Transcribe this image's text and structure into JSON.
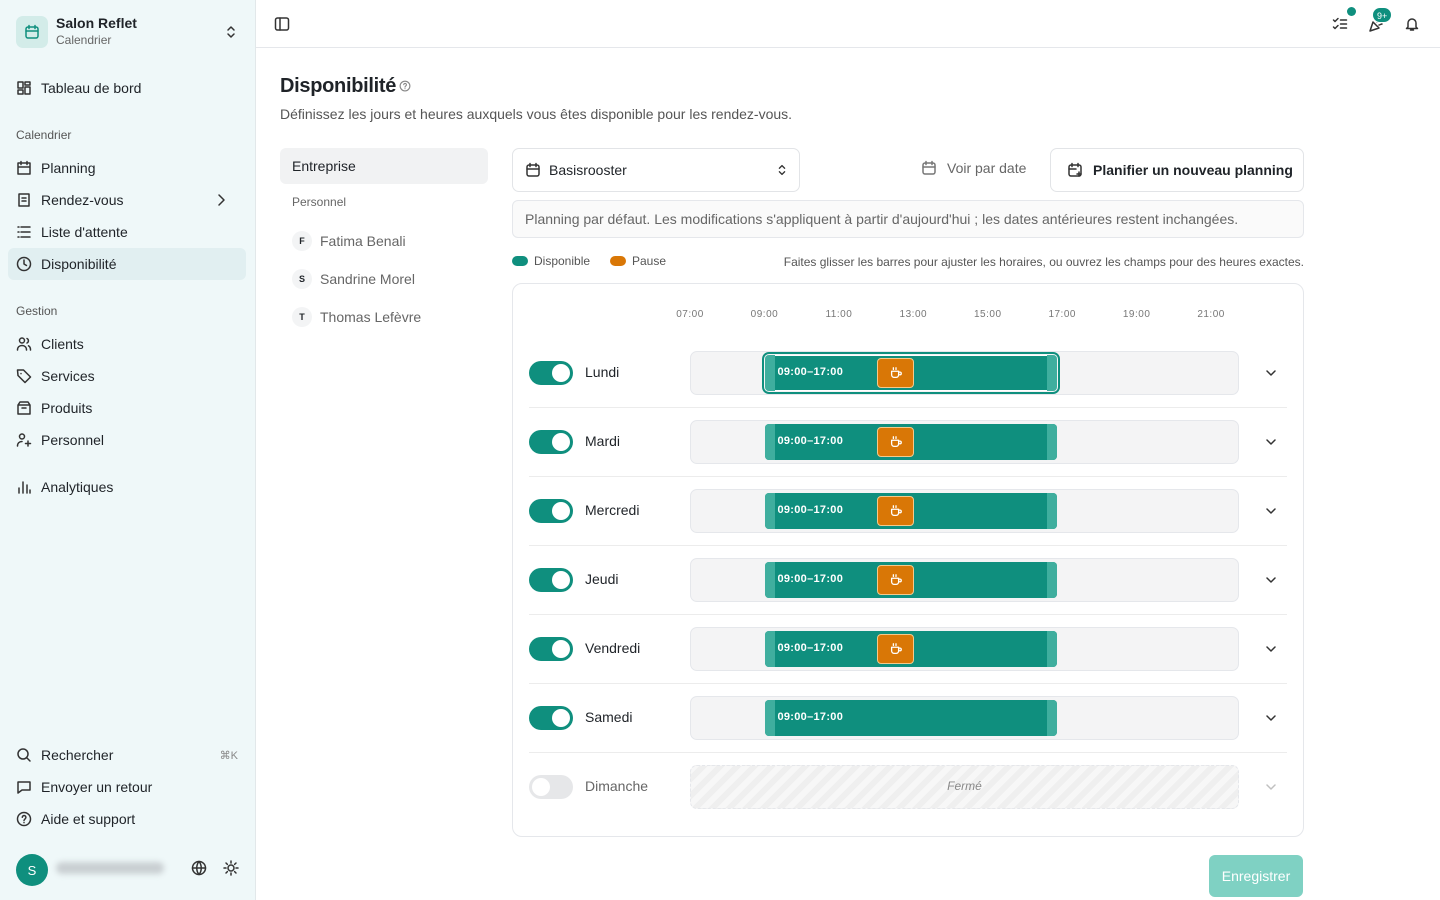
{
  "sidebar": {
    "org": {
      "name": "Salon Reflet",
      "subtitle": "Calendrier"
    },
    "top_item": "Tableau de bord",
    "sections": [
      {
        "title": "Calendrier",
        "items": [
          {
            "label": "Planning"
          },
          {
            "label": "Rendez-vous",
            "expandable": true
          },
          {
            "label": "Liste d'attente"
          },
          {
            "label": "Disponibilité",
            "active": true
          }
        ]
      },
      {
        "title": "Gestion",
        "items": [
          {
            "label": "Clients"
          },
          {
            "label": "Services"
          },
          {
            "label": "Produits"
          },
          {
            "label": "Personnel"
          }
        ]
      }
    ],
    "extra_item": "Analytiques",
    "footer": [
      {
        "label": "Rechercher",
        "shortcut": "⌘K"
      },
      {
        "label": "Envoyer un retour"
      },
      {
        "label": "Aide et support"
      }
    ],
    "user": {
      "initial": "S"
    }
  },
  "topbar": {
    "badge": "9+"
  },
  "page": {
    "title": "Disponibilité",
    "description": "Définissez les jours et heures auxquels vous êtes disponible pour les rendez-vous.",
    "scope": {
      "company": "Entreprise",
      "staff_heading": "Personnel",
      "staff": [
        {
          "initial": "F",
          "name": "Fatima Benali"
        },
        {
          "initial": "S",
          "name": "Sandrine Morel"
        },
        {
          "initial": "T",
          "name": "Thomas Lefèvre"
        }
      ]
    },
    "schedule_select": "Basisrooster",
    "view_by_date": "Voir par date",
    "new_schedule": "Planifier un nouveau planning",
    "notice": "Planning par défaut. Les modifications s'appliquent à partir d'aujourd'hui ; les dates antérieures restent inchangées.",
    "legend": [
      {
        "label": "Disponible",
        "color": "#0f8f7e"
      },
      {
        "label": "Pause",
        "color": "#d97706"
      }
    ],
    "hint": "Faites glisser les barres pour ajuster les horaires, ou ouvrez les champs pour des heures exactes.",
    "timeline": {
      "xlim": [
        7,
        21.75
      ],
      "xticks": [
        {
          "value": 7,
          "label": "07:00"
        },
        {
          "value": 9,
          "label": "09:00"
        },
        {
          "value": 11,
          "label": "11:00"
        },
        {
          "value": 13,
          "label": "13:00"
        },
        {
          "value": 15,
          "label": "15:00"
        },
        {
          "value": 17,
          "label": "17:00"
        },
        {
          "value": 19,
          "label": "19:00"
        },
        {
          "value": 21,
          "label": "21:00"
        }
      ],
      "days": [
        {
          "name": "Lundi",
          "enabled": true,
          "start": 9,
          "end": 17,
          "label": "09:00–17:00",
          "pause": [
            12,
            13
          ],
          "selected": true
        },
        {
          "name": "Mardi",
          "enabled": true,
          "start": 9,
          "end": 17,
          "label": "09:00–17:00",
          "pause": [
            12,
            13
          ]
        },
        {
          "name": "Mercredi",
          "enabled": true,
          "start": 9,
          "end": 17,
          "label": "09:00–17:00",
          "pause": [
            12,
            13
          ]
        },
        {
          "name": "Jeudi",
          "enabled": true,
          "start": 9,
          "end": 17,
          "label": "09:00–17:00",
          "pause": [
            12,
            13
          ]
        },
        {
          "name": "Vendredi",
          "enabled": true,
          "start": 9,
          "end": 17,
          "label": "09:00–17:00",
          "pause": [
            12,
            13
          ]
        },
        {
          "name": "Samedi",
          "enabled": true,
          "start": 9,
          "end": 17,
          "label": "09:00–17:00"
        },
        {
          "name": "Dimanche",
          "enabled": false,
          "closed_label": "Fermé"
        }
      ]
    },
    "save": "Enregistrer"
  }
}
